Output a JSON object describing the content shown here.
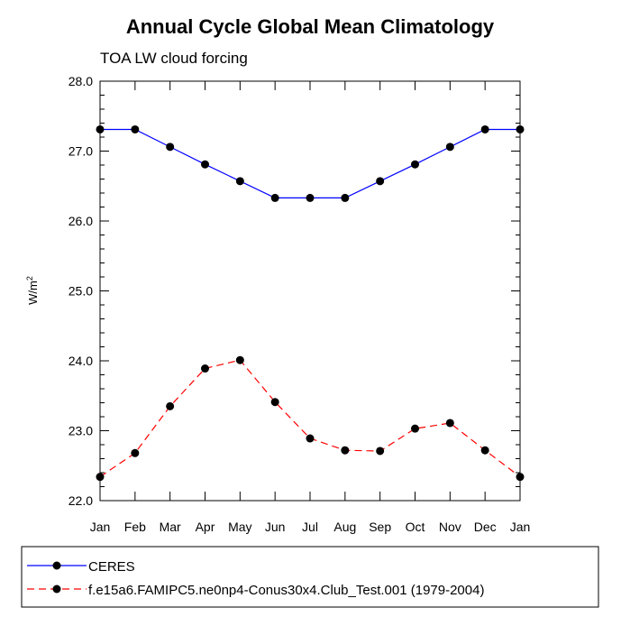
{
  "chart_data": {
    "type": "line",
    "title": "Annual Cycle Global Mean Climatology",
    "subtitle": "TOA LW cloud forcing",
    "xlabel": "",
    "ylabel": "W/m",
    "ylabel_superscript": "2",
    "ylim": [
      22.0,
      28.0
    ],
    "yticks": [
      "22.0",
      "23.0",
      "24.0",
      "25.0",
      "26.0",
      "27.0",
      "28.0"
    ],
    "categories": [
      "Jan",
      "Feb",
      "Mar",
      "Apr",
      "May",
      "Jun",
      "Jul",
      "Aug",
      "Sep",
      "Oct",
      "Nov",
      "Dec",
      "Jan"
    ],
    "series": [
      {
        "name": "CERES",
        "color": "#0000ff",
        "dash": "solid",
        "values": [
          27.31,
          27.31,
          27.06,
          26.81,
          26.57,
          26.33,
          26.33,
          26.33,
          26.57,
          26.81,
          27.06,
          27.31,
          27.31
        ]
      },
      {
        "name": "f.e15a6.FAMIPC5.ne0np4-Conus30x4.Club_Test.001 (1979-2004)",
        "color": "#ff0000",
        "dash": "dashed",
        "values": [
          22.34,
          22.68,
          23.35,
          23.89,
          24.01,
          23.41,
          22.89,
          22.72,
          22.71,
          23.03,
          23.11,
          22.72,
          22.34
        ]
      }
    ]
  }
}
